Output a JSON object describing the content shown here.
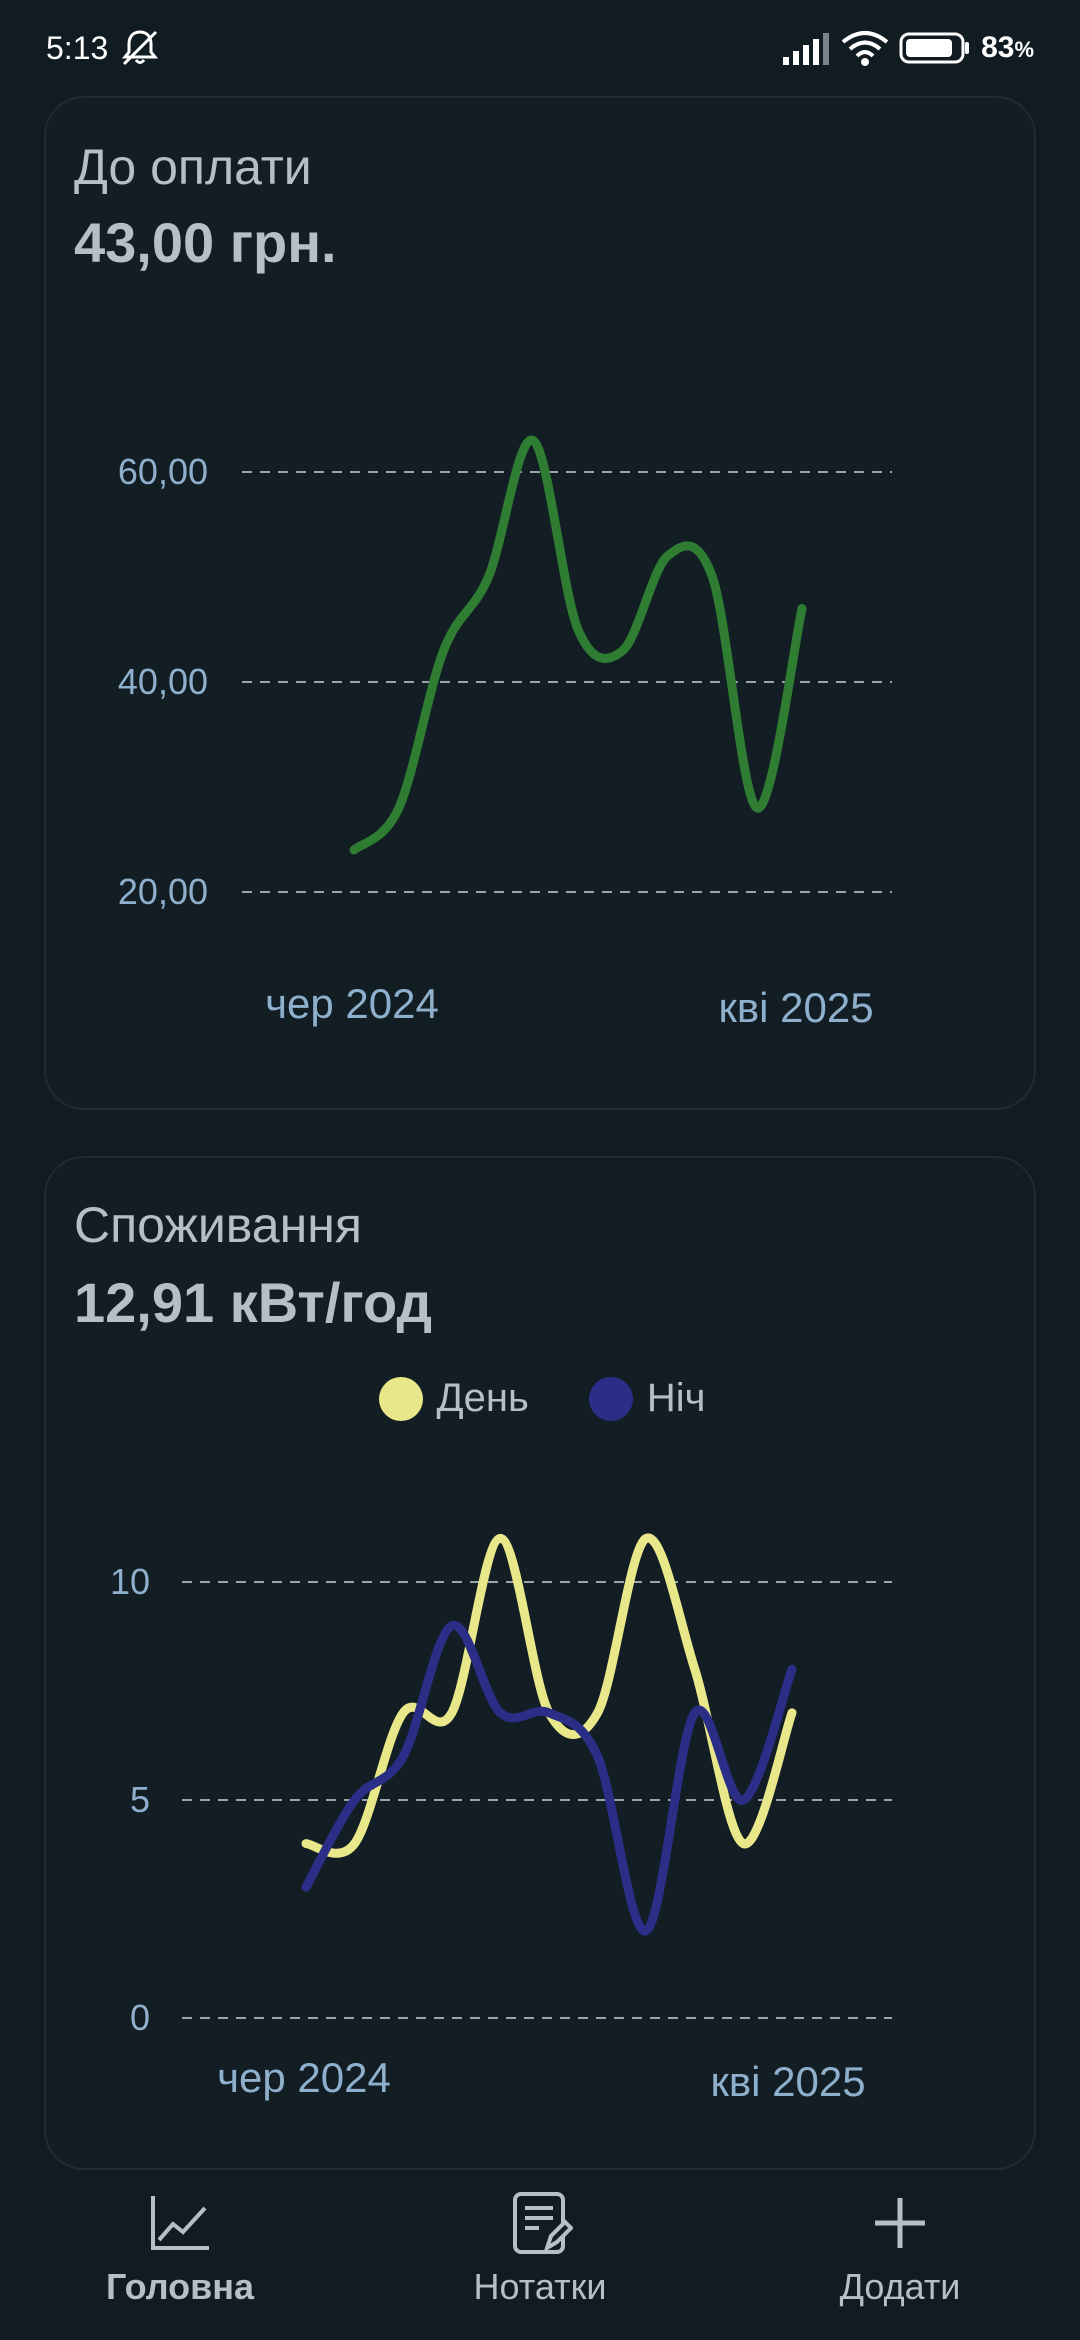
{
  "status_bar": {
    "time": "5:13",
    "battery": "83"
  },
  "payment": {
    "title": "До оплати",
    "value": "43,00 грн.",
    "chart_data": {
      "type": "line",
      "title": "",
      "x": [
        "2024-06",
        "2024-07",
        "2024-08",
        "2024-09",
        "2024-10",
        "2024-11",
        "2024-12",
        "2025-01",
        "2025-02",
        "2025-03",
        "2025-04"
      ],
      "x_tick_labels": [
        "чер 2024",
        "кві 2025"
      ],
      "y_tick_labels": [
        "60,00",
        "40,00",
        "20,00"
      ],
      "ylim": [
        20,
        60
      ],
      "grid": true,
      "series": [
        {
          "values": [
            24,
            28,
            43,
            50,
            63,
            45,
            43,
            52,
            50,
            28,
            47
          ],
          "color": "#2e7d32"
        }
      ]
    }
  },
  "consumption": {
    "title": "Споживання",
    "value": "12,91 кВт/год",
    "legend": [
      {
        "label": "День",
        "color": "#e8e88a"
      },
      {
        "label": "Ніч",
        "color": "#2a2e86"
      }
    ],
    "chart_data": {
      "type": "line",
      "title": "",
      "x": [
        "2024-06",
        "2024-07",
        "2024-08",
        "2024-09",
        "2024-10",
        "2024-11",
        "2024-12",
        "2025-01",
        "2025-02",
        "2025-03",
        "2025-04"
      ],
      "x_tick_labels": [
        "чер 2024",
        "кві 2025"
      ],
      "y_tick_labels": [
        "10",
        "5",
        "0"
      ],
      "ylim": [
        0,
        10
      ],
      "grid": true,
      "series": [
        {
          "name": "День",
          "values": [
            4,
            4,
            7,
            7,
            11,
            7,
            7,
            11,
            8,
            4,
            7
          ],
          "color": "#e8e88a"
        },
        {
          "name": "Ніч",
          "values": [
            3,
            5,
            6,
            9,
            7,
            7,
            6,
            2,
            7,
            5,
            8
          ],
          "color": "#2a2e86"
        }
      ]
    }
  },
  "nav": {
    "items": [
      {
        "label": "Головна",
        "icon": "chart-icon",
        "active": true
      },
      {
        "label": "Нотатки",
        "icon": "notes-icon",
        "active": false
      },
      {
        "label": "Додати",
        "icon": "plus-icon",
        "active": false
      }
    ]
  }
}
